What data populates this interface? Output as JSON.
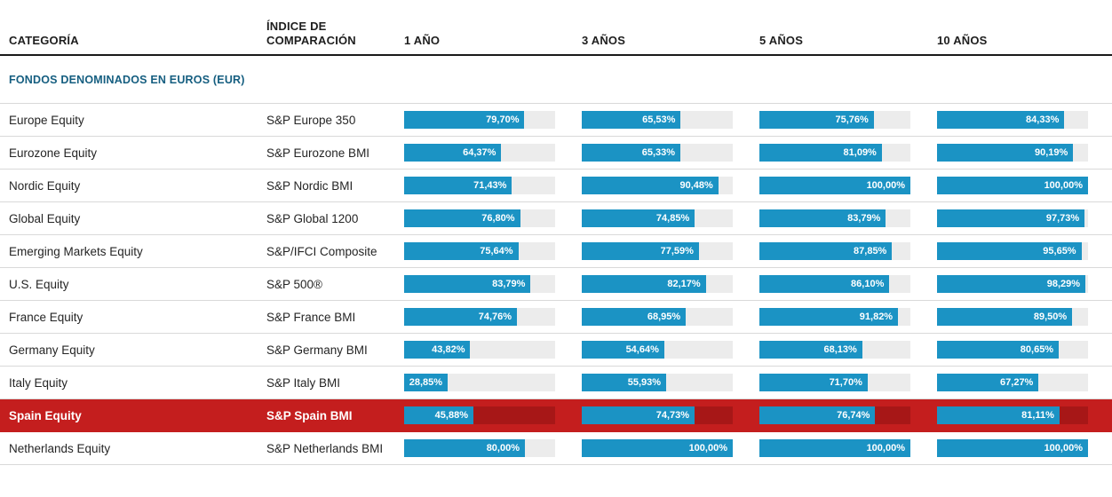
{
  "page": {
    "section_title": "FONDOS DENOMINADOS EN EUROS (EUR)"
  },
  "colors": {
    "bar_fill": "#1b93c4",
    "bar_track": "#ececec",
    "highlight_row_bg": "#c41e1e",
    "highlight_bar_track": "#a71717",
    "section_title_text": "#155e80",
    "header_rule": "#1a1a1a",
    "row_separator": "#d9d9d9"
  },
  "chart_data": {
    "type": "table",
    "title": "FONDOS DENOMINADOS EN EUROS (EUR)",
    "columns": [
      "CATEGORÍA",
      "ÍNDICE DE COMPARACIÓN",
      "1 AÑO",
      "3 AÑOS",
      "5 AÑOS",
      "10 AÑOS"
    ],
    "value_axis_range": [
      0,
      100
    ],
    "bar_style": "horizontal percentage bars with in-bar labels, decimal comma format",
    "rows": [
      {
        "category": "Europe Equity",
        "benchmark": "S&P Europe 350",
        "values": [
          79.7,
          65.53,
          75.76,
          84.33
        ],
        "labels": [
          "79,70%",
          "65,53%",
          "75,76%",
          "84,33%"
        ],
        "highlighted": false
      },
      {
        "category": "Eurozone Equity",
        "benchmark": "S&P Eurozone BMI",
        "values": [
          64.37,
          65.33,
          81.09,
          90.19
        ],
        "labels": [
          "64,37%",
          "65,33%",
          "81,09%",
          "90,19%"
        ],
        "highlighted": false
      },
      {
        "category": "Nordic Equity",
        "benchmark": "S&P Nordic BMI",
        "values": [
          71.43,
          90.48,
          100.0,
          100.0
        ],
        "labels": [
          "71,43%",
          "90,48%",
          "100,00%",
          "100,00%"
        ],
        "highlighted": false
      },
      {
        "category": "Global Equity",
        "benchmark": "S&P Global 1200",
        "values": [
          76.8,
          74.85,
          83.79,
          97.73
        ],
        "labels": [
          "76,80%",
          "74,85%",
          "83,79%",
          "97,73%"
        ],
        "highlighted": false
      },
      {
        "category": "Emerging Markets Equity",
        "benchmark": "S&P/IFCI Composite",
        "values": [
          75.64,
          77.59,
          87.85,
          95.65
        ],
        "labels": [
          "75,64%",
          "77,59%",
          "87,85%",
          "95,65%"
        ],
        "highlighted": false
      },
      {
        "category": "U.S. Equity",
        "benchmark": "S&P 500®",
        "values": [
          83.79,
          82.17,
          86.1,
          98.29
        ],
        "labels": [
          "83,79%",
          "82,17%",
          "86,10%",
          "98,29%"
        ],
        "highlighted": false
      },
      {
        "category": "France Equity",
        "benchmark": "S&P France BMI",
        "values": [
          74.76,
          68.95,
          91.82,
          89.5
        ],
        "labels": [
          "74,76%",
          "68,95%",
          "91,82%",
          "89,50%"
        ],
        "highlighted": false
      },
      {
        "category": "Germany Equity",
        "benchmark": "S&P Germany BMI",
        "values": [
          43.82,
          54.64,
          68.13,
          80.65
        ],
        "labels": [
          "43,82%",
          "54,64%",
          "68,13%",
          "80,65%"
        ],
        "highlighted": false
      },
      {
        "category": "Italy Equity",
        "benchmark": "S&P Italy BMI",
        "values": [
          28.85,
          55.93,
          71.7,
          67.27
        ],
        "labels": [
          "28,85%",
          "55,93%",
          "71,70%",
          "67,27%"
        ],
        "highlighted": false
      },
      {
        "category": "Spain Equity",
        "benchmark": "S&P Spain BMI",
        "values": [
          45.88,
          74.73,
          76.74,
          81.11
        ],
        "labels": [
          "45,88%",
          "74,73%",
          "76,74%",
          "81,11%"
        ],
        "highlighted": true
      },
      {
        "category": "Netherlands Equity",
        "benchmark": "S&P Netherlands BMI",
        "values": [
          80.0,
          100.0,
          100.0,
          100.0
        ],
        "labels": [
          "80,00%",
          "100,00%",
          "100,00%",
          "100,00%"
        ],
        "highlighted": false
      }
    ]
  }
}
